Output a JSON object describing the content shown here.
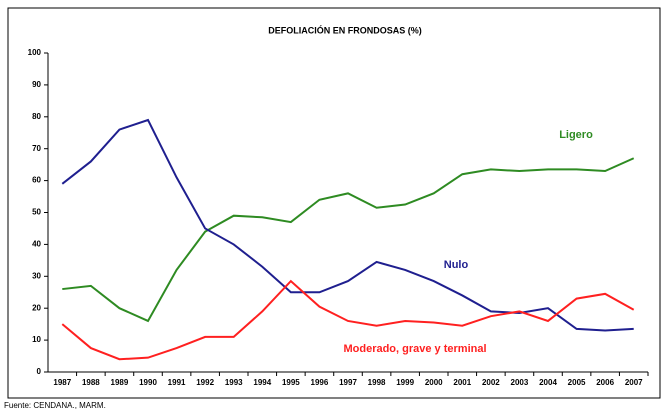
{
  "chart_data": {
    "type": "line",
    "title": "DEFOLIACIÓN EN FRONDOSAS (%)",
    "categories": [
      "1987",
      "1988",
      "1989",
      "1990",
      "1991",
      "1992",
      "1993",
      "1994",
      "1995",
      "1996",
      "1997",
      "1998",
      "1999",
      "2000",
      "2001",
      "2002",
      "2003",
      "2004",
      "2005",
      "2006",
      "2007"
    ],
    "series": [
      {
        "name": "Ligero",
        "color": "#2e8b22",
        "values": [
          26,
          27,
          20,
          16,
          32,
          44,
          49,
          48.5,
          47,
          54,
          56,
          51.5,
          52.5,
          56,
          62,
          63.5,
          63,
          63.5,
          63.5,
          63,
          67
        ]
      },
      {
        "name": "Nulo",
        "color": "#1f1f8f",
        "values": [
          59,
          66,
          76,
          79,
          61,
          45,
          40,
          33,
          25,
          25,
          28.5,
          34.5,
          32,
          28.5,
          24,
          19,
          18.5,
          20,
          13.5,
          13,
          13.5
        ]
      },
      {
        "name": "Moderado, grave y terminal",
        "color": "#ff2020",
        "values": [
          15,
          7.5,
          4,
          4.5,
          7.5,
          11,
          11,
          19,
          28.5,
          20.5,
          16,
          14.5,
          16,
          15.5,
          14.5,
          17.5,
          19,
          16,
          23,
          24.5,
          19.5
        ]
      }
    ],
    "ylim": [
      0,
      100
    ],
    "yticks": [
      0,
      10,
      20,
      30,
      40,
      50,
      60,
      70,
      80,
      90,
      100
    ],
    "source": "Fuente: CENDANA., MARM."
  }
}
